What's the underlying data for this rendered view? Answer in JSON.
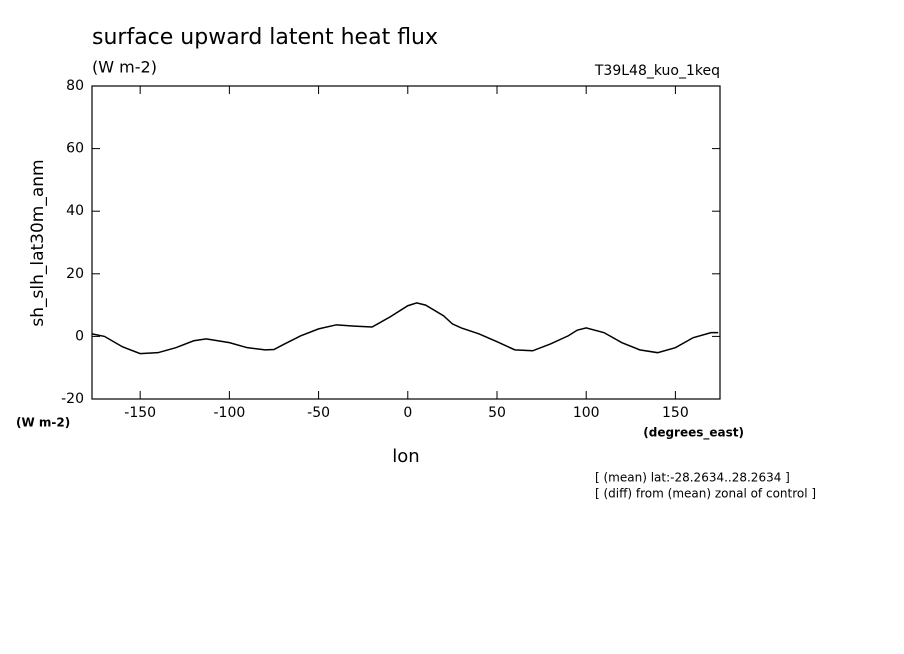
{
  "chart_data": {
    "type": "line",
    "title": "surface upward latent heat flux",
    "units": "(W m-2)",
    "experiment": "T39L48_kuo_1keq",
    "ylabel": "sh_slh_lat30m_anm",
    "yunits": "(W m-2)",
    "xlabel": "lon",
    "xunits": "(degrees_east)",
    "notes": [
      "[ (mean) lat:-28.2634..28.2634 ]",
      "[ (diff) from (mean) zonal of control ]"
    ],
    "x": [
      -177,
      -170,
      -160,
      -150,
      -140,
      -130,
      -120,
      -113,
      -100,
      -90,
      -80,
      -75,
      -70,
      -60,
      -50,
      -40,
      -30,
      -20,
      -10,
      0,
      5,
      10,
      20,
      25,
      30,
      40,
      50,
      60,
      70,
      80,
      90,
      95,
      100,
      110,
      120,
      130,
      140,
      150,
      160,
      170,
      174
    ],
    "series": [
      {
        "name": "sh_slh_lat30m_anm",
        "color": "#000000",
        "values": [
          0.8,
          0,
          -3.3,
          -5.5,
          -5.2,
          -3.6,
          -1.4,
          -0.8,
          -2,
          -3.6,
          -4.3,
          -4.2,
          -2.7,
          0.2,
          2.4,
          3.7,
          3.3,
          3.0,
          6.2,
          9.8,
          10.7,
          10,
          6.6,
          4,
          2.7,
          0.8,
          -1.7,
          -4.3,
          -4.6,
          -2.4,
          0.2,
          2,
          2.7,
          1.2,
          -2,
          -4.3,
          -5.2,
          -3.6,
          -0.4,
          1.2,
          1.2
        ]
      }
    ],
    "xlim": [
      -177,
      175
    ],
    "ylim": [
      -20,
      80
    ],
    "xticks": [
      -150,
      -100,
      -50,
      0,
      50,
      100,
      150
    ],
    "yticks": [
      -20,
      0,
      20,
      40,
      60,
      80
    ]
  }
}
